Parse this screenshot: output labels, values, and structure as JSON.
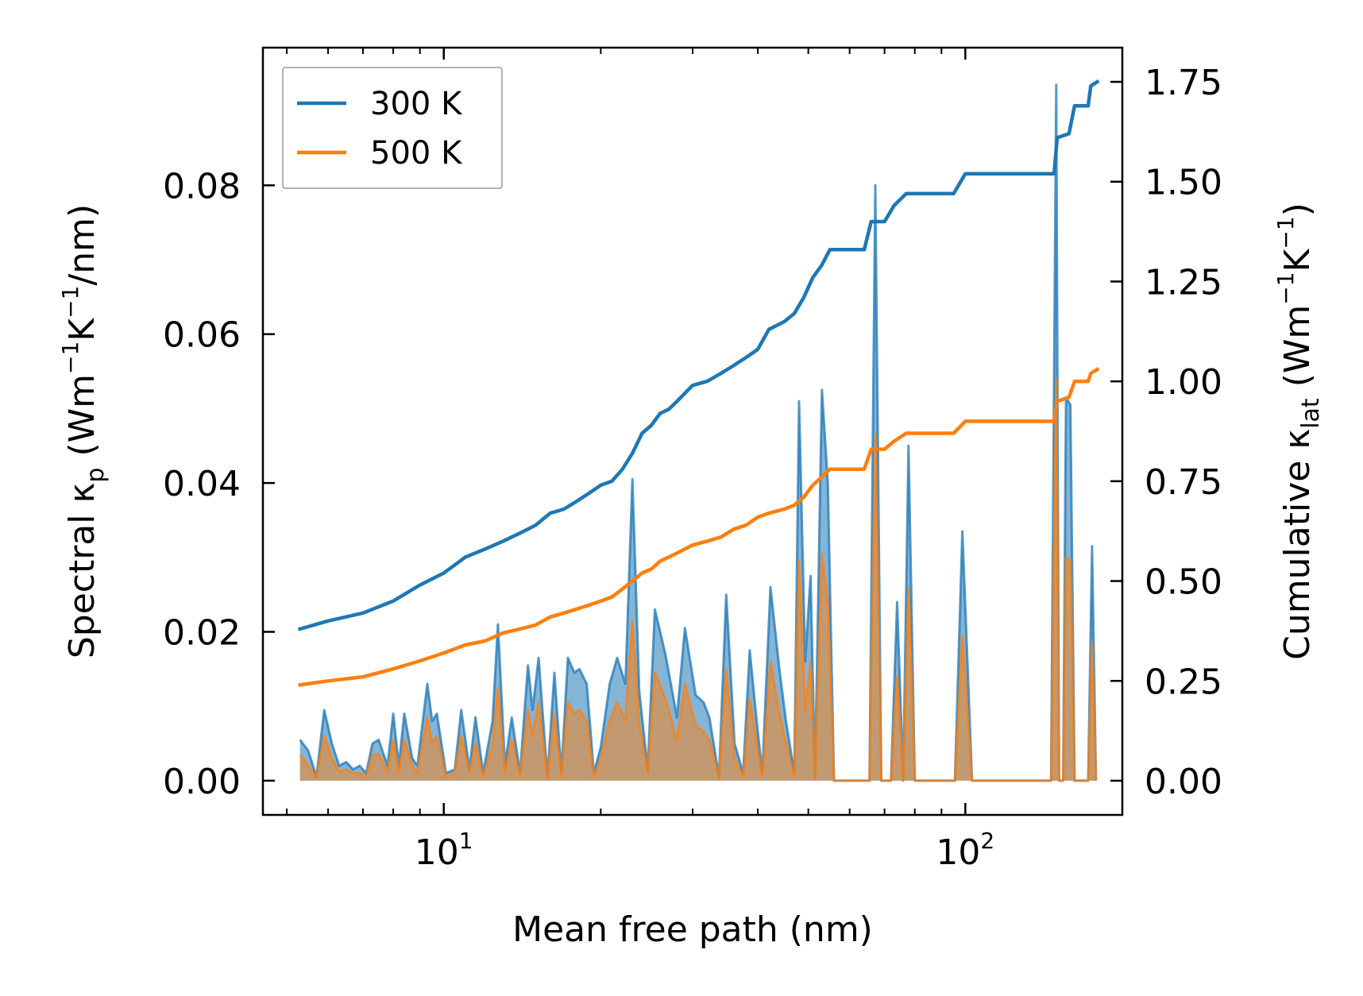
{
  "chart_data": {
    "type": "line",
    "xscale": "log",
    "xlabel": "Mean free path (nm)",
    "ylabel_left_parts": [
      "Spectral κ",
      "p",
      " (Wm",
      "−1",
      "K",
      "−1",
      "/nm)"
    ],
    "ylabel_right_parts": [
      "Cumulative κ",
      "lat",
      " (Wm",
      "−1",
      "K",
      "−1",
      ")"
    ],
    "xlim": [
      4.5,
      200
    ],
    "ylim_left": [
      -0.0046,
      0.0985
    ],
    "ylim_right": [
      -0.0856,
      1.8356
    ],
    "x_ticks": [
      {
        "value": 10,
        "base": "10",
        "exp": "1"
      },
      {
        "value": 100,
        "base": "10",
        "exp": "2"
      }
    ],
    "y_ticks_left": [
      {
        "value": 0.0,
        "label": "0.00"
      },
      {
        "value": 0.02,
        "label": "0.02"
      },
      {
        "value": 0.04,
        "label": "0.04"
      },
      {
        "value": 0.06,
        "label": "0.06"
      },
      {
        "value": 0.08,
        "label": "0.08"
      }
    ],
    "y_ticks_right": [
      {
        "value": 0.0,
        "label": "0.00"
      },
      {
        "value": 0.25,
        "label": "0.25"
      },
      {
        "value": 0.5,
        "label": "0.50"
      },
      {
        "value": 0.75,
        "label": "0.75"
      },
      {
        "value": 1.0,
        "label": "1.00"
      },
      {
        "value": 1.25,
        "label": "1.25"
      },
      {
        "value": 1.5,
        "label": "1.50"
      },
      {
        "value": 1.75,
        "label": "1.75"
      }
    ],
    "legend": {
      "position": "top-left",
      "entries": [
        "300 K",
        "500 K"
      ]
    },
    "series": [
      {
        "name": "300 K",
        "color": "#1f77b4",
        "spectral": [
          [
            5.3,
            0.0055
          ],
          [
            5.5,
            0.004
          ],
          [
            5.7,
            0.0005
          ],
          [
            5.9,
            0.0095
          ],
          [
            6.1,
            0.005
          ],
          [
            6.3,
            0.002
          ],
          [
            6.5,
            0.0025
          ],
          [
            6.7,
            0.0015
          ],
          [
            6.9,
            0.002
          ],
          [
            7.1,
            0.001
          ],
          [
            7.3,
            0.005
          ],
          [
            7.5,
            0.0055
          ],
          [
            7.8,
            0.002
          ],
          [
            8.0,
            0.009
          ],
          [
            8.2,
            0.002
          ],
          [
            8.4,
            0.009
          ],
          [
            8.7,
            0.003
          ],
          [
            8.9,
            0.002
          ],
          [
            9.3,
            0.013
          ],
          [
            9.5,
            0.008
          ],
          [
            9.7,
            0.009
          ],
          [
            10.1,
            0.001
          ],
          [
            10.5,
            0.0015
          ],
          [
            10.8,
            0.0095
          ],
          [
            11.2,
            0.0015
          ],
          [
            11.5,
            0.0085
          ],
          [
            11.9,
            0.001
          ],
          [
            12.4,
            0.008
          ],
          [
            12.7,
            0.021
          ],
          [
            13.1,
            0.002
          ],
          [
            13.5,
            0.0085
          ],
          [
            14.0,
            0.001
          ],
          [
            14.5,
            0.0155
          ],
          [
            14.8,
            0.0095
          ],
          [
            15.2,
            0.0165
          ],
          [
            15.8,
            0.0005
          ],
          [
            16.3,
            0.0145
          ],
          [
            16.8,
            0.001
          ],
          [
            17.3,
            0.0165
          ],
          [
            17.8,
            0.0145
          ],
          [
            18.2,
            0.015
          ],
          [
            18.8,
            0.013
          ],
          [
            19.4,
            0.001
          ],
          [
            20.0,
            0.0045
          ],
          [
            20.8,
            0.013
          ],
          [
            21.5,
            0.0165
          ],
          [
            22.3,
            0.013
          ],
          [
            23.0,
            0.0405
          ],
          [
            23.7,
            0.012
          ],
          [
            24.6,
            0.0015
          ],
          [
            25.4,
            0.023
          ],
          [
            26.6,
            0.017
          ],
          [
            28.0,
            0.0085
          ],
          [
            29.0,
            0.0205
          ],
          [
            30.4,
            0.0115
          ],
          [
            31.5,
            0.0105
          ],
          [
            32.3,
            0.0085
          ],
          [
            33.7,
            0.0005
          ],
          [
            34.8,
            0.025
          ],
          [
            36.1,
            0.005
          ],
          [
            37.5,
            0.001
          ],
          [
            38.6,
            0.0175
          ],
          [
            39.8,
            0.008
          ],
          [
            40.8,
            0.001
          ],
          [
            42.3,
            0.026
          ],
          [
            44.0,
            0.015
          ],
          [
            45.3,
            0.008
          ],
          [
            47.0,
            0.001
          ],
          [
            48.0,
            0.051
          ],
          [
            49.3,
            0.016
          ],
          [
            50.5,
            0.0275
          ],
          [
            51.5,
            0.0005
          ],
          [
            53.1,
            0.0525
          ],
          [
            54.5,
            0.04
          ],
          [
            56.0,
            0.0
          ],
          [
            64.0,
            0.0
          ],
          [
            65.5,
            0.0
          ],
          [
            67.2,
            0.08
          ],
          [
            69.0,
            0.0
          ],
          [
            72.0,
            0.0
          ],
          [
            74.0,
            0.024
          ],
          [
            76.0,
            0.0
          ],
          [
            77.8,
            0.045
          ],
          [
            80.0,
            0.0
          ],
          [
            95.5,
            0.0
          ],
          [
            98.7,
            0.0335
          ],
          [
            103.0,
            0.0
          ],
          [
            146.0,
            0.0
          ],
          [
            149.4,
            0.0935
          ],
          [
            151.3,
            0.0
          ],
          [
            154.0,
            0.0
          ],
          [
            156.0,
            0.0515
          ],
          [
            159.0,
            0.0505
          ],
          [
            162.0,
            0.0
          ],
          [
            172.0,
            0.0
          ],
          [
            175.0,
            0.0315
          ],
          [
            178.0,
            0.0
          ]
        ],
        "cumulative": [
          [
            5.3,
            0.38
          ],
          [
            6.0,
            0.4
          ],
          [
            7.0,
            0.42
          ],
          [
            8.0,
            0.45
          ],
          [
            9.0,
            0.49
          ],
          [
            10.0,
            0.52
          ],
          [
            11.0,
            0.56
          ],
          [
            12.0,
            0.58
          ],
          [
            13.0,
            0.6
          ],
          [
            14.0,
            0.62
          ],
          [
            15.0,
            0.64
          ],
          [
            16.0,
            0.67
          ],
          [
            17.0,
            0.68
          ],
          [
            18.0,
            0.7
          ],
          [
            19.0,
            0.72
          ],
          [
            20.0,
            0.74
          ],
          [
            21.0,
            0.75
          ],
          [
            22.0,
            0.78
          ],
          [
            23.0,
            0.82
          ],
          [
            24.0,
            0.87
          ],
          [
            25.0,
            0.89
          ],
          [
            26.0,
            0.92
          ],
          [
            27.0,
            0.93
          ],
          [
            28.0,
            0.95
          ],
          [
            30.0,
            0.99
          ],
          [
            32.0,
            1.0
          ],
          [
            34.0,
            1.02
          ],
          [
            36.0,
            1.04
          ],
          [
            38.0,
            1.06
          ],
          [
            40.0,
            1.08
          ],
          [
            42.0,
            1.13
          ],
          [
            45.0,
            1.15
          ],
          [
            47.0,
            1.17
          ],
          [
            49.0,
            1.21
          ],
          [
            51.0,
            1.26
          ],
          [
            53.0,
            1.29
          ],
          [
            55.0,
            1.33
          ],
          [
            64.0,
            1.33
          ],
          [
            66.0,
            1.4
          ],
          [
            70.0,
            1.4
          ],
          [
            73.0,
            1.44
          ],
          [
            77.0,
            1.47
          ],
          [
            95.0,
            1.47
          ],
          [
            100.0,
            1.52
          ],
          [
            148.0,
            1.52
          ],
          [
            150.0,
            1.61
          ],
          [
            158.0,
            1.62
          ],
          [
            162.0,
            1.69
          ],
          [
            172.0,
            1.69
          ],
          [
            174.0,
            1.74
          ],
          [
            179.0,
            1.75
          ]
        ]
      },
      {
        "name": "500 K",
        "color": "#ff7f0e",
        "spectral": [
          [
            5.3,
            0.0035
          ],
          [
            5.5,
            0.002
          ],
          [
            5.7,
            0.0005
          ],
          [
            5.9,
            0.006
          ],
          [
            6.1,
            0.003
          ],
          [
            6.3,
            0.0012
          ],
          [
            6.5,
            0.0015
          ],
          [
            6.7,
            0.001
          ],
          [
            6.9,
            0.001
          ],
          [
            7.1,
            0.0005
          ],
          [
            7.3,
            0.0035
          ],
          [
            7.5,
            0.0035
          ],
          [
            7.8,
            0.0012
          ],
          [
            8.0,
            0.0055
          ],
          [
            8.2,
            0.001
          ],
          [
            8.4,
            0.0055
          ],
          [
            8.7,
            0.002
          ],
          [
            8.9,
            0.001
          ],
          [
            9.3,
            0.0085
          ],
          [
            9.5,
            0.005
          ],
          [
            9.7,
            0.006
          ],
          [
            10.1,
            0.0005
          ],
          [
            10.5,
            0.001
          ],
          [
            10.8,
            0.006
          ],
          [
            11.2,
            0.001
          ],
          [
            11.5,
            0.005
          ],
          [
            11.9,
            0.0005
          ],
          [
            12.4,
            0.005
          ],
          [
            12.7,
            0.0125
          ],
          [
            13.1,
            0.001
          ],
          [
            13.5,
            0.0055
          ],
          [
            14.0,
            0.0005
          ],
          [
            14.5,
            0.0095
          ],
          [
            14.8,
            0.006
          ],
          [
            15.2,
            0.0105
          ],
          [
            15.8,
            0.0003
          ],
          [
            16.3,
            0.009
          ],
          [
            16.8,
            0.0005
          ],
          [
            17.3,
            0.0105
          ],
          [
            17.8,
            0.009
          ],
          [
            18.2,
            0.0095
          ],
          [
            18.8,
            0.008
          ],
          [
            19.4,
            0.0005
          ],
          [
            20.0,
            0.003
          ],
          [
            20.8,
            0.008
          ],
          [
            21.5,
            0.0105
          ],
          [
            22.3,
            0.008
          ],
          [
            23.0,
            0.0215
          ],
          [
            23.7,
            0.0075
          ],
          [
            24.6,
            0.001
          ],
          [
            25.4,
            0.0145
          ],
          [
            26.6,
            0.011
          ],
          [
            28.0,
            0.0055
          ],
          [
            29.0,
            0.013
          ],
          [
            30.4,
            0.0075
          ],
          [
            31.5,
            0.0065
          ],
          [
            32.3,
            0.0055
          ],
          [
            33.7,
            0.0003
          ],
          [
            34.8,
            0.015
          ],
          [
            36.1,
            0.003
          ],
          [
            37.5,
            0.0005
          ],
          [
            38.6,
            0.011
          ],
          [
            39.8,
            0.005
          ],
          [
            40.8,
            0.0005
          ],
          [
            42.3,
            0.016
          ],
          [
            44.0,
            0.009
          ],
          [
            45.3,
            0.005
          ],
          [
            47.0,
            0.0005
          ],
          [
            48.0,
            0.0295
          ],
          [
            49.3,
            0.0095
          ],
          [
            50.5,
            0.016
          ],
          [
            51.5,
            0.0003
          ],
          [
            53.1,
            0.0305
          ],
          [
            54.5,
            0.024
          ],
          [
            56.0,
            0.0
          ],
          [
            64.0,
            0.0
          ],
          [
            65.5,
            0.0
          ],
          [
            67.2,
            0.0465
          ],
          [
            69.0,
            0.0
          ],
          [
            72.0,
            0.0
          ],
          [
            74.0,
            0.014
          ],
          [
            76.0,
            0.0
          ],
          [
            77.8,
            0.026
          ],
          [
            80.0,
            0.0
          ],
          [
            95.5,
            0.0
          ],
          [
            98.7,
            0.0195
          ],
          [
            103.0,
            0.0
          ],
          [
            146.0,
            0.0
          ],
          [
            149.4,
            0.054
          ],
          [
            151.3,
            0.0
          ],
          [
            154.0,
            0.0
          ],
          [
            156.0,
            0.03
          ],
          [
            159.0,
            0.0295
          ],
          [
            162.0,
            0.0
          ],
          [
            172.0,
            0.0
          ],
          [
            175.0,
            0.0185
          ],
          [
            178.0,
            0.0
          ]
        ],
        "cumulative": [
          [
            5.3,
            0.24
          ],
          [
            6.0,
            0.25
          ],
          [
            7.0,
            0.26
          ],
          [
            8.0,
            0.28
          ],
          [
            9.0,
            0.3
          ],
          [
            10.0,
            0.32
          ],
          [
            11.0,
            0.34
          ],
          [
            12.0,
            0.35
          ],
          [
            13.0,
            0.37
          ],
          [
            14.0,
            0.38
          ],
          [
            15.0,
            0.39
          ],
          [
            16.0,
            0.41
          ],
          [
            17.0,
            0.42
          ],
          [
            18.0,
            0.43
          ],
          [
            19.0,
            0.44
          ],
          [
            20.0,
            0.45
          ],
          [
            21.0,
            0.46
          ],
          [
            22.0,
            0.48
          ],
          [
            23.0,
            0.5
          ],
          [
            24.0,
            0.52
          ],
          [
            25.0,
            0.53
          ],
          [
            26.0,
            0.55
          ],
          [
            27.0,
            0.56
          ],
          [
            28.0,
            0.57
          ],
          [
            30.0,
            0.59
          ],
          [
            32.0,
            0.6
          ],
          [
            34.0,
            0.61
          ],
          [
            36.0,
            0.63
          ],
          [
            38.0,
            0.64
          ],
          [
            40.0,
            0.66
          ],
          [
            42.0,
            0.67
          ],
          [
            45.0,
            0.68
          ],
          [
            47.0,
            0.69
          ],
          [
            49.0,
            0.71
          ],
          [
            51.0,
            0.74
          ],
          [
            53.0,
            0.76
          ],
          [
            55.0,
            0.78
          ],
          [
            64.0,
            0.78
          ],
          [
            66.0,
            0.83
          ],
          [
            70.0,
            0.83
          ],
          [
            73.0,
            0.85
          ],
          [
            77.0,
            0.87
          ],
          [
            95.0,
            0.87
          ],
          [
            100.0,
            0.9
          ],
          [
            148.0,
            0.9
          ],
          [
            150.0,
            0.95
          ],
          [
            158.0,
            0.96
          ],
          [
            162.0,
            1.0
          ],
          [
            172.0,
            1.0
          ],
          [
            174.0,
            1.02
          ],
          [
            179.0,
            1.03
          ]
        ]
      }
    ]
  }
}
